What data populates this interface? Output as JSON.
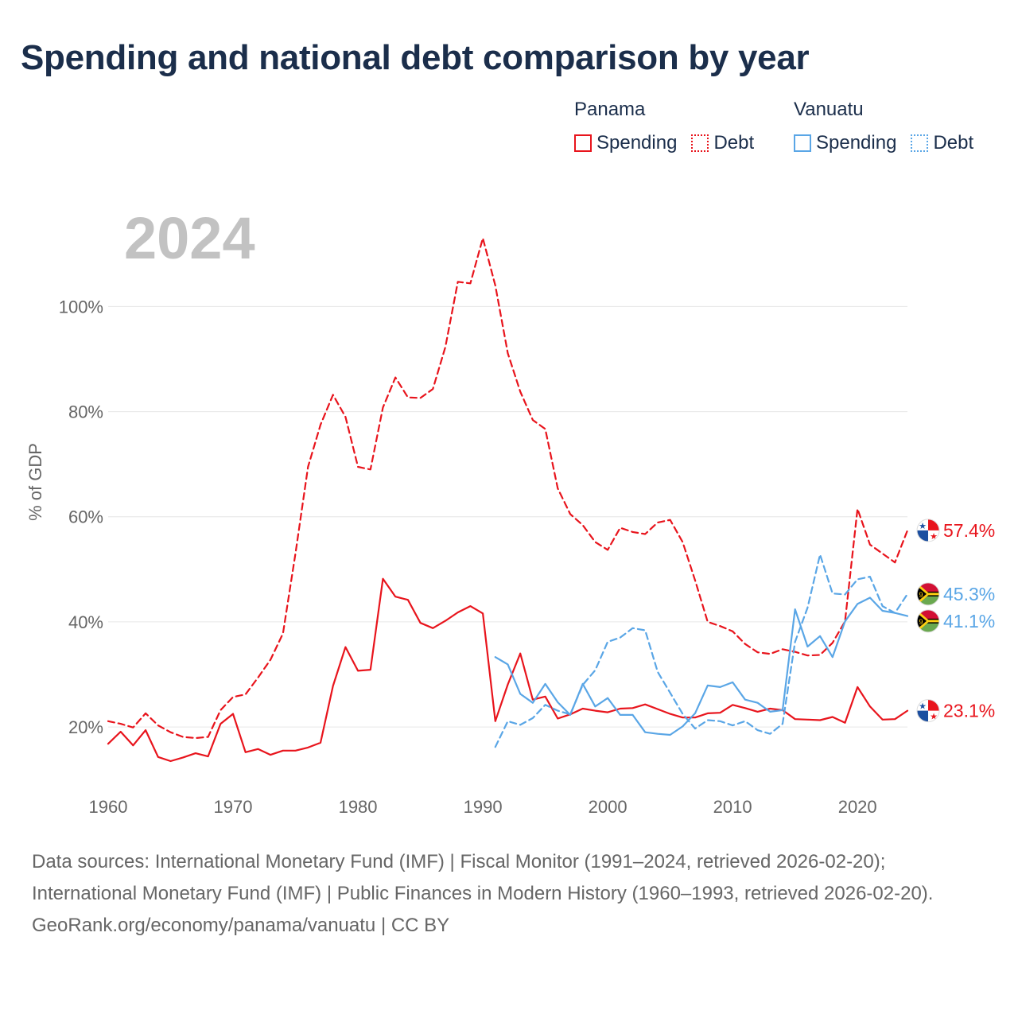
{
  "title": "Spending and national debt comparison by year",
  "legend": {
    "groups": [
      {
        "name": "Panama",
        "color": "#e8141c",
        "items": [
          {
            "label": "Spending",
            "style": "solid"
          },
          {
            "label": "Debt",
            "style": "dotted"
          }
        ]
      },
      {
        "name": "Vanuatu",
        "color": "#5aa6e6",
        "items": [
          {
            "label": "Spending",
            "style": "solid"
          },
          {
            "label": "Debt",
            "style": "dotted"
          }
        ]
      }
    ]
  },
  "sources": {
    "text": "Data sources: International Monetary Fund (IMF) | Fiscal Monitor (1991–2024, retrieved 2026-02-20); International Monetary Fund (IMF) | Public Finances in Modern History (1960–1993, retrieved 2026-02-20).",
    "site": "GeoRank.org/economy/panama/vanuatu | CC BY"
  },
  "chart_data": {
    "type": "line",
    "title": "Spending and national debt comparison by year",
    "year_label": "2024",
    "xlabel": "",
    "ylabel": "% of GDP",
    "xlim": [
      1960,
      2024
    ],
    "ylim": [
      7,
      122
    ],
    "xticks": [
      1960,
      1970,
      1980,
      1990,
      2000,
      2010,
      2020
    ],
    "yticks": [
      20,
      40,
      60,
      80,
      100
    ],
    "ytick_format": "{v}%",
    "grid": true,
    "series": [
      {
        "name": "Panama Debt",
        "country": "Panama",
        "metric": "Debt",
        "color": "#e8141c",
        "dash": "dashed",
        "end_label": "57.4%",
        "points": [
          [
            1960,
            21.1
          ],
          [
            1961,
            20.6
          ],
          [
            1962,
            19.9
          ],
          [
            1963,
            22.6
          ],
          [
            1964,
            20.3
          ],
          [
            1965,
            19.0
          ],
          [
            1966,
            18.1
          ],
          [
            1967,
            17.9
          ],
          [
            1968,
            18.1
          ],
          [
            1969,
            23.2
          ],
          [
            1970,
            25.7
          ],
          [
            1971,
            26.2
          ],
          [
            1972,
            29.4
          ],
          [
            1973,
            32.8
          ],
          [
            1974,
            37.8
          ],
          [
            1975,
            53.0
          ],
          [
            1976,
            69.5
          ],
          [
            1977,
            77.5
          ],
          [
            1978,
            83.2
          ],
          [
            1979,
            79.0
          ],
          [
            1980,
            69.5
          ],
          [
            1981,
            69.0
          ],
          [
            1982,
            80.8
          ],
          [
            1983,
            86.5
          ],
          [
            1984,
            82.7
          ],
          [
            1985,
            82.6
          ],
          [
            1986,
            84.3
          ],
          [
            1987,
            92.3
          ],
          [
            1988,
            104.7
          ],
          [
            1989,
            104.4
          ],
          [
            1990,
            113.0
          ],
          [
            1991,
            104.0
          ],
          [
            1992,
            91.1
          ],
          [
            1993,
            83.8
          ],
          [
            1994,
            78.4
          ],
          [
            1995,
            76.7
          ],
          [
            1996,
            65.4
          ],
          [
            1997,
            60.5
          ],
          [
            1998,
            58.4
          ],
          [
            1999,
            55.2
          ],
          [
            2000,
            53.7
          ],
          [
            2001,
            57.9
          ],
          [
            2002,
            57.1
          ],
          [
            2003,
            56.7
          ],
          [
            2004,
            58.9
          ],
          [
            2005,
            59.4
          ],
          [
            2006,
            55.2
          ],
          [
            2007,
            47.9
          ],
          [
            2008,
            40.0
          ],
          [
            2009,
            39.2
          ],
          [
            2010,
            38.2
          ],
          [
            2011,
            35.8
          ],
          [
            2012,
            34.2
          ],
          [
            2013,
            33.9
          ],
          [
            2014,
            34.8
          ],
          [
            2015,
            34.3
          ],
          [
            2016,
            33.6
          ],
          [
            2017,
            33.7
          ],
          [
            2018,
            36.0
          ],
          [
            2019,
            40.1
          ],
          [
            2020,
            61.5
          ],
          [
            2021,
            54.7
          ],
          [
            2022,
            53.0
          ],
          [
            2023,
            51.3
          ],
          [
            2024,
            57.4
          ]
        ]
      },
      {
        "name": "Panama Spending",
        "country": "Panama",
        "metric": "Spending",
        "color": "#e8141c",
        "dash": "solid",
        "end_label": "23.1%",
        "points": [
          [
            1960,
            16.8
          ],
          [
            1961,
            19.1
          ],
          [
            1962,
            16.5
          ],
          [
            1963,
            19.4
          ],
          [
            1964,
            14.3
          ],
          [
            1965,
            13.5
          ],
          [
            1966,
            14.2
          ],
          [
            1967,
            15.0
          ],
          [
            1968,
            14.4
          ],
          [
            1969,
            20.6
          ],
          [
            1970,
            22.5
          ],
          [
            1971,
            15.2
          ],
          [
            1972,
            15.8
          ],
          [
            1973,
            14.7
          ],
          [
            1974,
            15.5
          ],
          [
            1975,
            15.5
          ],
          [
            1976,
            16.1
          ],
          [
            1977,
            17.0
          ],
          [
            1978,
            27.8
          ],
          [
            1979,
            35.2
          ],
          [
            1980,
            30.7
          ],
          [
            1981,
            30.9
          ],
          [
            1982,
            48.2
          ],
          [
            1983,
            44.8
          ],
          [
            1984,
            44.2
          ],
          [
            1985,
            39.8
          ],
          [
            1986,
            38.8
          ],
          [
            1987,
            40.2
          ],
          [
            1988,
            41.8
          ],
          [
            1989,
            43.0
          ],
          [
            1990,
            41.6
          ],
          [
            1991,
            21.1
          ],
          [
            1992,
            28.1
          ],
          [
            1993,
            34.0
          ],
          [
            1994,
            25.2
          ],
          [
            1995,
            25.8
          ],
          [
            1996,
            21.6
          ],
          [
            1997,
            22.4
          ],
          [
            1998,
            23.5
          ],
          [
            1999,
            23.1
          ],
          [
            2000,
            22.8
          ],
          [
            2001,
            23.5
          ],
          [
            2002,
            23.6
          ],
          [
            2003,
            24.3
          ],
          [
            2004,
            23.4
          ],
          [
            2005,
            22.5
          ],
          [
            2006,
            21.8
          ],
          [
            2007,
            21.8
          ],
          [
            2008,
            22.6
          ],
          [
            2009,
            22.7
          ],
          [
            2010,
            24.2
          ],
          [
            2011,
            23.6
          ],
          [
            2012,
            22.9
          ],
          [
            2013,
            23.5
          ],
          [
            2014,
            23.2
          ],
          [
            2015,
            21.5
          ],
          [
            2016,
            21.4
          ],
          [
            2017,
            21.3
          ],
          [
            2018,
            21.9
          ],
          [
            2019,
            20.8
          ],
          [
            2020,
            27.6
          ],
          [
            2021,
            23.9
          ],
          [
            2022,
            21.4
          ],
          [
            2023,
            21.5
          ],
          [
            2024,
            23.1
          ]
        ]
      },
      {
        "name": "Vanuatu Debt",
        "country": "Vanuatu",
        "metric": "Debt",
        "color": "#5aa6e6",
        "dash": "dashed",
        "end_label": "45.3%",
        "points": [
          [
            1991,
            16.2
          ],
          [
            1992,
            21.1
          ],
          [
            1993,
            20.4
          ],
          [
            1994,
            21.7
          ],
          [
            1995,
            24.2
          ],
          [
            1996,
            23.1
          ],
          [
            1997,
            22.4
          ],
          [
            1998,
            28.0
          ],
          [
            1999,
            30.8
          ],
          [
            2000,
            36.2
          ],
          [
            2001,
            37.0
          ],
          [
            2002,
            38.8
          ],
          [
            2003,
            38.4
          ],
          [
            2004,
            30.5
          ],
          [
            2005,
            26.5
          ],
          [
            2006,
            22.5
          ],
          [
            2007,
            19.7
          ],
          [
            2008,
            21.3
          ],
          [
            2009,
            21.1
          ],
          [
            2010,
            20.3
          ],
          [
            2011,
            21.1
          ],
          [
            2012,
            19.4
          ],
          [
            2013,
            18.7
          ],
          [
            2014,
            20.6
          ],
          [
            2015,
            36.2
          ],
          [
            2016,
            42.7
          ],
          [
            2017,
            52.8
          ],
          [
            2018,
            45.4
          ],
          [
            2019,
            45.2
          ],
          [
            2020,
            48.1
          ],
          [
            2021,
            48.6
          ],
          [
            2022,
            43.0
          ],
          [
            2023,
            41.7
          ],
          [
            2024,
            45.3
          ]
        ]
      },
      {
        "name": "Vanuatu Spending",
        "country": "Vanuatu",
        "metric": "Spending",
        "color": "#5aa6e6",
        "dash": "solid",
        "end_label": "41.1%",
        "points": [
          [
            1991,
            33.3
          ],
          [
            1992,
            31.9
          ],
          [
            1993,
            26.3
          ],
          [
            1994,
            24.6
          ],
          [
            1995,
            28.2
          ],
          [
            1996,
            24.7
          ],
          [
            1997,
            22.3
          ],
          [
            1998,
            28.2
          ],
          [
            1999,
            23.9
          ],
          [
            2000,
            25.5
          ],
          [
            2001,
            22.3
          ],
          [
            2002,
            22.3
          ],
          [
            2003,
            19.0
          ],
          [
            2004,
            18.7
          ],
          [
            2005,
            18.5
          ],
          [
            2006,
            20.1
          ],
          [
            2007,
            22.6
          ],
          [
            2008,
            27.9
          ],
          [
            2009,
            27.6
          ],
          [
            2010,
            28.5
          ],
          [
            2011,
            25.2
          ],
          [
            2012,
            24.6
          ],
          [
            2013,
            22.9
          ],
          [
            2014,
            23.2
          ],
          [
            2015,
            42.4
          ],
          [
            2016,
            35.3
          ],
          [
            2017,
            37.3
          ],
          [
            2018,
            33.3
          ],
          [
            2019,
            40.1
          ],
          [
            2020,
            43.4
          ],
          [
            2021,
            44.6
          ],
          [
            2022,
            42.1
          ],
          [
            2023,
            41.7
          ],
          [
            2024,
            41.1
          ]
        ]
      }
    ]
  }
}
